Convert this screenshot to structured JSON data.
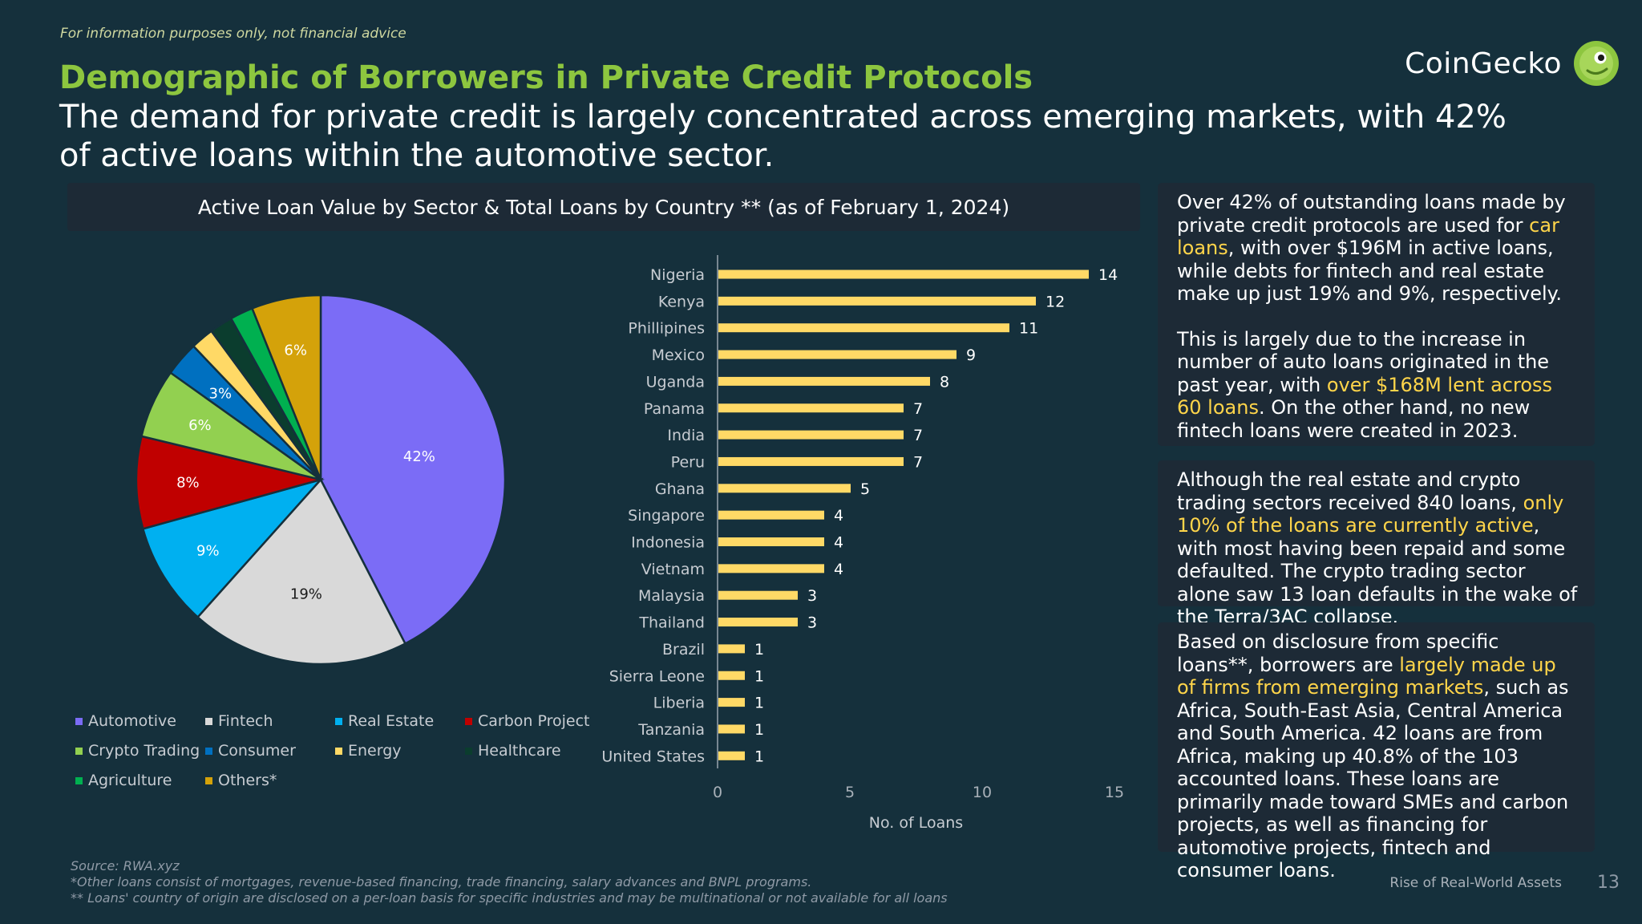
{
  "disclaimer": "For information purposes only, not financial advice",
  "brand": {
    "name": "CoinGecko"
  },
  "title": "Demographic of Borrowers in Private Credit Protocols",
  "subtitle": "The demand for private credit is largely concentrated across emerging markets, with 42% of active loans within the automotive sector.",
  "chart_header": "Active Loan Value by Sector & Total Loans by Country ** (as of February 1, 2024)",
  "chart_data": [
    {
      "type": "pie",
      "slices": [
        {
          "name": "Automotive",
          "value": 42,
          "label": "42%",
          "color": "#7b6cf6"
        },
        {
          "name": "Fintech",
          "value": 19,
          "label": "19%",
          "color": "#d9d9d9"
        },
        {
          "name": "Real Estate",
          "value": 9,
          "label": "9%",
          "color": "#00b0f0"
        },
        {
          "name": "Carbon Project",
          "value": 8,
          "label": "8%",
          "color": "#c00000"
        },
        {
          "name": "Crypto Trading",
          "value": 6,
          "label": "6%",
          "color": "#92d050"
        },
        {
          "name": "Consumer",
          "value": 3,
          "label": "3%",
          "color": "#0070c0"
        },
        {
          "name": "Energy",
          "value": 2,
          "label": "",
          "color": "#ffd966"
        },
        {
          "name": "Healthcare",
          "value": 2,
          "label": "",
          "color": "#0b3d2e"
        },
        {
          "name": "Agriculture",
          "value": 2,
          "label": "",
          "color": "#00b050"
        },
        {
          "name": "Others*",
          "value": 6,
          "label": "6%",
          "color": "#d4a20a"
        }
      ],
      "legend_position": "bottom"
    },
    {
      "type": "bar",
      "orientation": "horizontal",
      "categories": [
        "Nigeria",
        "Kenya",
        "Phillipines",
        "Mexico",
        "Uganda",
        "Panama",
        "India",
        "Peru",
        "Ghana",
        "Singapore",
        "Indonesia",
        "Vietnam",
        "Malaysia",
        "Thailand",
        "Brazil",
        "Sierra Leone",
        "Liberia",
        "Tanzania",
        "United States"
      ],
      "values": [
        14,
        12,
        11,
        9,
        8,
        7,
        7,
        7,
        5,
        4,
        4,
        4,
        3,
        3,
        1,
        1,
        1,
        1,
        1
      ],
      "xlabel": "No. of Loans",
      "xlim": [
        0,
        15
      ],
      "xticks": [
        0,
        5,
        10,
        15
      ],
      "bar_color": "#ffd966",
      "grid": false
    }
  ],
  "notes": [
    {
      "segments": [
        {
          "text": "Over 42% of outstanding loans made by private credit protocols are used for ",
          "hl": false
        },
        {
          "text": "car loans",
          "hl": true
        },
        {
          "text": ", with over $196M in active loans, while debts for fintech and real estate make up just 19% and 9%, respectively.",
          "hl": false
        }
      ],
      "segments2": [
        {
          "text": "This is largely due to the increase in number of auto loans originated in the past year, with ",
          "hl": false
        },
        {
          "text": "over $168M lent across 60 loans",
          "hl": true
        },
        {
          "text": ". On the other hand, no new fintech loans were created in 2023.",
          "hl": false
        }
      ]
    },
    {
      "segments": [
        {
          "text": "Although the real estate and crypto trading sectors received 840 loans, ",
          "hl": false
        },
        {
          "text": "only 10% of the loans are currently active",
          "hl": true
        },
        {
          "text": ", with most having been repaid and some defaulted. The crypto trading sector alone saw 13 loan defaults in the wake of the Terra/3AC collapse.",
          "hl": false
        }
      ]
    },
    {
      "segments": [
        {
          "text": "Based on disclosure from specific loans**, borrowers are ",
          "hl": false
        },
        {
          "text": "largely made up of firms from emerging markets",
          "hl": true
        },
        {
          "text": ", such as Africa, South-East Asia, Central America and South America. 42 loans are from Africa, making up 40.8% of the 103 accounted loans. These loans are primarily made toward SMEs and carbon projects, as well as financing for automotive projects, fintech and consumer loans.",
          "hl": false
        }
      ]
    }
  ],
  "footer": {
    "source": "Source: RWA.xyz",
    "note1": "*Other loans consist of mortgages, revenue-based financing, trade financing, salary advances and BNPL programs.",
    "note2": "** Loans' country of origin are disclosed on a per-loan basis for specific industries and may be multinational or not available for all loans",
    "report_name": "Rise of Real-World Assets",
    "page": "13"
  }
}
